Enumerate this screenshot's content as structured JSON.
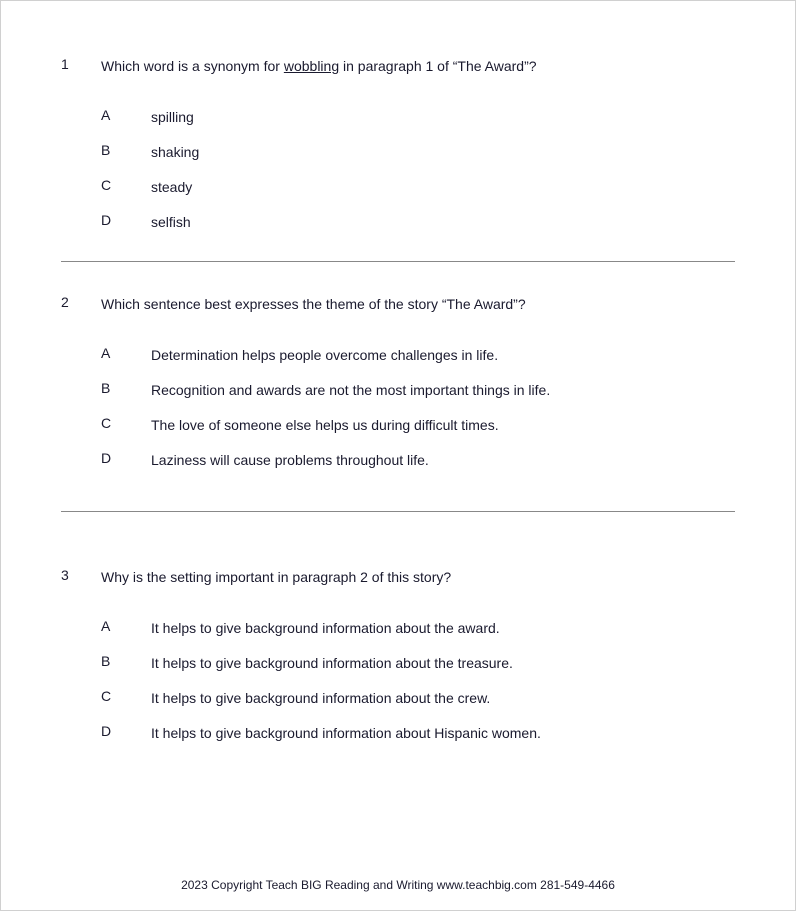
{
  "questions": [
    {
      "number": "1",
      "prefix": "Which word is a synonym for ",
      "underlined": "wobbling",
      "suffix": " in paragraph 1 of “The Award”?",
      "choices": [
        {
          "letter": "A",
          "text": "spilling"
        },
        {
          "letter": "B",
          "text": "shaking"
        },
        {
          "letter": "C",
          "text": "steady"
        },
        {
          "letter": "D",
          "text": "selfish"
        }
      ]
    },
    {
      "number": "2",
      "text": "Which sentence best expresses the theme of the story “The Award”?",
      "choices": [
        {
          "letter": "A",
          "text": "Determination helps people overcome challenges in life."
        },
        {
          "letter": "B",
          "text": "Recognition and awards are not the most important things in life."
        },
        {
          "letter": "C",
          "text": "The love of someone else helps us during difficult times."
        },
        {
          "letter": "D",
          "text": "Laziness will cause problems throughout life."
        }
      ]
    },
    {
      "number": "3",
      "text": "Why is the setting important in paragraph 2 of this story?",
      "choices": [
        {
          "letter": "A",
          "text": "It helps to give background information about the award."
        },
        {
          "letter": "B",
          "text": "It helps to give background information about the treasure."
        },
        {
          "letter": "C",
          "text": "It helps to give background information about the crew."
        },
        {
          "letter": "D",
          "text": "It helps to give background information about Hispanic women."
        }
      ]
    }
  ],
  "footer": "2023 Copyright Teach BIG Reading and Writing www.teachbig.com 281-549-4466"
}
